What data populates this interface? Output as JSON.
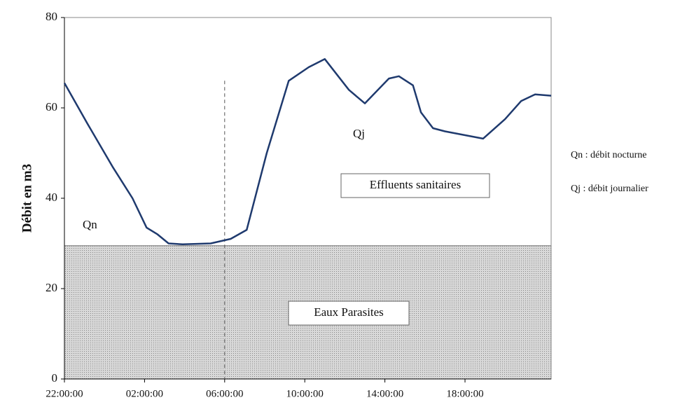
{
  "chart_data": {
    "type": "line",
    "y_label": "Débit en m3",
    "x": [
      0,
      1.15,
      2.4,
      3.4,
      4.1,
      4.65,
      5.2,
      5.9,
      7.3,
      8.3,
      9.1,
      10.1,
      11.2,
      12.2,
      13,
      14.2,
      15,
      16.2,
      16.7,
      17.4,
      17.8,
      18.4,
      19,
      20.9,
      22,
      22.8,
      23.5,
      24.3
    ],
    "series": [
      {
        "name": "Qj",
        "color": "#1f3a6e",
        "values": [
          65.5,
          56.5,
          47,
          40,
          33.5,
          32,
          30,
          29.8,
          30,
          31,
          33,
          50,
          66,
          69,
          70.8,
          64,
          61,
          66.5,
          67,
          65,
          59,
          55.5,
          54.8,
          53.2,
          57.5,
          61.5,
          63,
          62.7
        ]
      }
    ],
    "xlim": [
      0,
      24.3
    ],
    "xticks": [
      {
        "value": 0,
        "label": "22:00:00"
      },
      {
        "value": 4,
        "label": "02:00:00"
      },
      {
        "value": 8,
        "label": "06:00:00"
      },
      {
        "value": 12,
        "label": "10:00:00"
      },
      {
        "value": 16,
        "label": "14:00:00"
      },
      {
        "value": 20,
        "label": "18:00:00"
      }
    ],
    "ylim": [
      0,
      80
    ],
    "yticks": [
      0,
      20,
      40,
      60,
      80
    ],
    "grid": false,
    "band": {
      "value": 29.5,
      "label": "Eaux Parasites",
      "color": "#cfcfcf"
    },
    "marker": {
      "x": 8,
      "top": 66
    },
    "annotations": {
      "qn": "Qn",
      "qj": "Qj",
      "effluents": "Effluents sanitaires"
    },
    "notes": [
      "Qn : débit nocturne",
      "Qj : débit journalier"
    ]
  }
}
